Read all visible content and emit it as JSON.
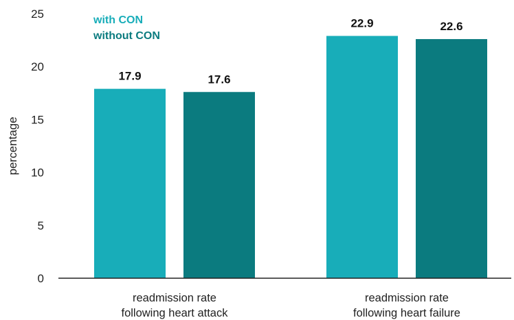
{
  "chart_data": {
    "type": "bar",
    "title": "",
    "xlabel": "",
    "ylabel": "percentage",
    "ylim": [
      0,
      25
    ],
    "yticks": [
      0,
      5,
      10,
      15,
      20,
      25
    ],
    "grid": false,
    "legend_position": "top-left",
    "categories": [
      [
        "readmission rate",
        "following heart attack"
      ],
      [
        "readmission rate",
        "following heart failure"
      ]
    ],
    "series": [
      {
        "name": "with CON",
        "color": "#18adb9",
        "values": [
          17.9,
          22.9
        ]
      },
      {
        "name": "without CON",
        "color": "#0b7b7f",
        "values": [
          17.6,
          22.6
        ]
      }
    ],
    "data_labels": true
  }
}
